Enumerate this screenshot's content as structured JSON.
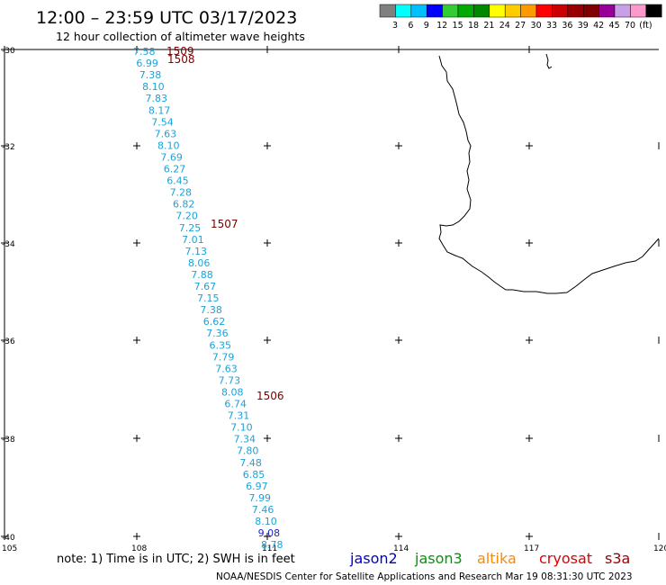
{
  "header": {
    "title": "12:00 – 23:59 UTC 03/17/2023",
    "subtitle": "12 hour collection of altimeter wave heights"
  },
  "color_scale": {
    "colors": [
      "#808080",
      "#00ffff",
      "#00bfff",
      "#0000ff",
      "#33cc33",
      "#00aa00",
      "#008800",
      "#ffff00",
      "#ffcc00",
      "#ff9900",
      "#ff0000",
      "#cc0000",
      "#990000",
      "#800000",
      "#990099",
      "#c8a0e8",
      "#ff99cc",
      "#000000"
    ],
    "labels": [
      "3",
      "6",
      "9",
      "12",
      "15",
      "18",
      "21",
      "24",
      "27",
      "30",
      "33",
      "36",
      "39",
      "42",
      "45",
      "70",
      "(ft)"
    ]
  },
  "axes": {
    "lat_labels": [
      "-30",
      "-32",
      "-34",
      "-36",
      "-38",
      "-40"
    ],
    "lon_labels": [
      "105",
      "108",
      "111",
      "114",
      "117",
      "120"
    ]
  },
  "track_values": [
    "7.58",
    "6.99",
    "7.38",
    "8.10",
    "7.83",
    "8.17",
    "7.54",
    "7.63",
    "8.10",
    "7.69",
    "6.27",
    "6.45",
    "7.28",
    "6.82",
    "7.20",
    "7.25",
    "7.01",
    "7.13",
    "8.06",
    "7.88",
    "7.67",
    "7.15",
    "7.38",
    "6.62",
    "7.36",
    "6.35",
    "7.79",
    "7.63",
    "7.73",
    "8.08",
    "6.74",
    "7.31",
    "7.10",
    "7.34",
    "7.80",
    "7.48",
    "6.85",
    "6.97",
    "7.99",
    "7.46",
    "8.10",
    "9.08",
    "8.78"
  ],
  "time_labels": [
    "1509",
    "1508",
    "1507",
    "1506"
  ],
  "footer": {
    "note": "note:  1) Time is in UTC;  2) SWH is in feet",
    "credit": "NOAA/NESDIS Center for Satellite Applications and Research    Mar 19 08:31:30 UTC 2023"
  },
  "satellites": [
    {
      "name": "jason2",
      "color": "#0000cc"
    },
    {
      "name": "jason3",
      "color": "#009900"
    },
    {
      "name": "altika",
      "color": "#ff8800"
    },
    {
      "name": "cryosat",
      "color": "#dd0000"
    },
    {
      "name": "s3a",
      "color": "#990000"
    }
  ]
}
